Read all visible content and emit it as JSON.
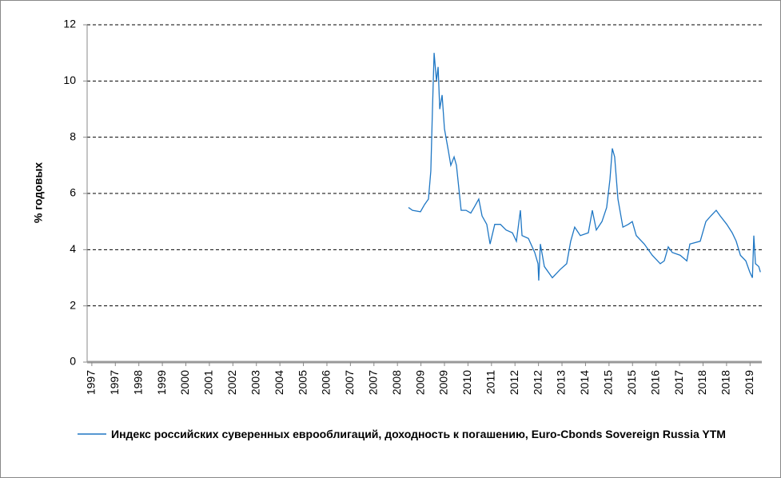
{
  "chart_data": {
    "type": "line",
    "ylabel": "% годовых",
    "series": [
      {
        "name": "Индекс российских  суверенных еврооблигаций, доходность к погашению, Euro-Cbonds Sovereign Russia YTM",
        "color": "#1f77c4",
        "x": [
          13.47,
          13.64,
          13.98,
          14.15,
          14.32,
          14.42,
          14.49,
          14.56,
          14.66,
          14.73,
          14.8,
          14.9,
          15.0,
          15.17,
          15.27,
          15.41,
          15.51,
          15.61,
          15.71,
          15.92,
          16.12,
          16.26,
          16.46,
          16.6,
          16.8,
          16.94,
          17.14,
          17.38,
          17.62,
          17.89,
          18.06,
          18.23,
          18.3,
          18.57,
          18.84,
          18.98,
          19.01,
          19.08,
          19.25,
          19.59,
          19.93,
          20.2,
          20.37,
          20.54,
          20.78,
          21.12,
          21.29,
          21.46,
          21.7,
          21.9,
          22.04,
          22.14,
          22.24,
          22.38,
          22.59,
          22.82,
          22.99,
          23.16,
          23.5,
          23.84,
          24.18,
          24.35,
          24.52,
          24.69,
          25.03,
          25.31,
          25.44,
          25.88,
          26.12,
          26.33,
          26.56,
          26.73,
          27.01,
          27.24,
          27.41,
          27.59,
          27.82,
          27.99,
          28.1,
          28.16,
          28.23,
          28.37,
          28.44
        ],
        "values": [
          5.5,
          5.4,
          5.35,
          5.6,
          5.8,
          6.8,
          9,
          11,
          10,
          10.5,
          9,
          9.5,
          8.3,
          7.5,
          7,
          7.3,
          7,
          6.2,
          5.4,
          5.4,
          5.3,
          5.5,
          5.8,
          5.2,
          4.9,
          4.2,
          4.9,
          4.9,
          4.7,
          4.6,
          4.3,
          5.4,
          4.5,
          4.4,
          3.9,
          3.5,
          2.9,
          4.2,
          3.4,
          3.0,
          3.3,
          3.5,
          4.3,
          4.8,
          4.5,
          4.6,
          5.4,
          4.7,
          5.0,
          5.5,
          6.5,
          7.6,
          7.3,
          5.8,
          4.8,
          4.9,
          5.0,
          4.5,
          4.2,
          3.8,
          3.5,
          3.6,
          4.1,
          3.9,
          3.8,
          3.6,
          4.2,
          4.3,
          5.0,
          5.2,
          5.4,
          5.2,
          4.9,
          4.6,
          4.3,
          3.8,
          3.6,
          3.2,
          3.0,
          4.5,
          3.5,
          3.4,
          3.2
        ]
      }
    ],
    "xlim": [
      -0.2,
      28.5
    ],
    "xticks": [
      {
        "value": 0,
        "label": "1997"
      },
      {
        "value": 1,
        "label": "1997"
      },
      {
        "value": 2,
        "label": "1998"
      },
      {
        "value": 3,
        "label": "1999"
      },
      {
        "value": 4,
        "label": "2000"
      },
      {
        "value": 5,
        "label": "2001"
      },
      {
        "value": 6,
        "label": "2002"
      },
      {
        "value": 7,
        "label": "2003"
      },
      {
        "value": 8,
        "label": "2004"
      },
      {
        "value": 9,
        "label": "2005"
      },
      {
        "value": 10,
        "label": "2006"
      },
      {
        "value": 11,
        "label": "2007"
      },
      {
        "value": 12,
        "label": "2007"
      },
      {
        "value": 13,
        "label": "2008"
      },
      {
        "value": 14,
        "label": "2009"
      },
      {
        "value": 15,
        "label": "2009"
      },
      {
        "value": 16,
        "label": "2010"
      },
      {
        "value": 17,
        "label": "2011"
      },
      {
        "value": 18,
        "label": "2012"
      },
      {
        "value": 19,
        "label": "2012"
      },
      {
        "value": 20,
        "label": "2013"
      },
      {
        "value": 21,
        "label": "2014"
      },
      {
        "value": 22,
        "label": "2015"
      },
      {
        "value": 23,
        "label": "2015"
      },
      {
        "value": 24,
        "label": "2016"
      },
      {
        "value": 25,
        "label": "2017"
      },
      {
        "value": 26,
        "label": "2018"
      },
      {
        "value": 27,
        "label": "2018"
      },
      {
        "value": 28,
        "label": "2019"
      }
    ],
    "ylim": [
      0,
      12
    ],
    "yticks": [
      0,
      2,
      4,
      6,
      8,
      10,
      12
    ],
    "grid": true,
    "legend": "bottom"
  }
}
